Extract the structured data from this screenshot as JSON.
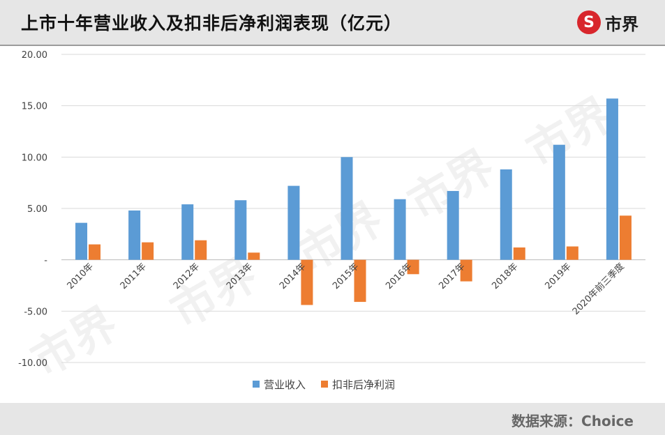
{
  "header": {
    "title": "上市十年营业收入及扣非后净利润表现（亿元）",
    "brand": "市界",
    "brand_icon": "s-logo-icon"
  },
  "footer": {
    "source": "数据来源：Choice"
  },
  "watermark": "市界",
  "colors": {
    "revenue": "#5b9bd5",
    "profit": "#ed7d31",
    "grid": "#d9d9d9",
    "axis_text": "#404040"
  },
  "chart_data": {
    "type": "bar",
    "title": "",
    "xlabel": "",
    "ylabel": "",
    "categories": [
      "2010年",
      "2011年",
      "2012年",
      "2013年",
      "2014年",
      "2015年",
      "2016年",
      "2017年",
      "2018年",
      "2019年",
      "2020年前三季度"
    ],
    "series": [
      {
        "name": "营业收入",
        "values": [
          3.6,
          4.8,
          5.4,
          5.8,
          7.2,
          10.0,
          5.9,
          6.7,
          8.8,
          11.2,
          15.7
        ]
      },
      {
        "name": "扣非后净利润",
        "values": [
          1.5,
          1.7,
          1.9,
          0.7,
          -4.4,
          -4.1,
          -1.4,
          -2.1,
          1.2,
          1.3,
          4.3
        ]
      }
    ],
    "ylim": [
      -10,
      20
    ],
    "yticks": [
      -10,
      -5,
      0,
      5,
      10,
      15,
      20
    ],
    "ytick_labels": [
      "-10.00",
      "-5.00",
      "-",
      "5.00",
      "10.00",
      "15.00",
      "20.00"
    ],
    "grid": true,
    "legend": "bottom"
  }
}
